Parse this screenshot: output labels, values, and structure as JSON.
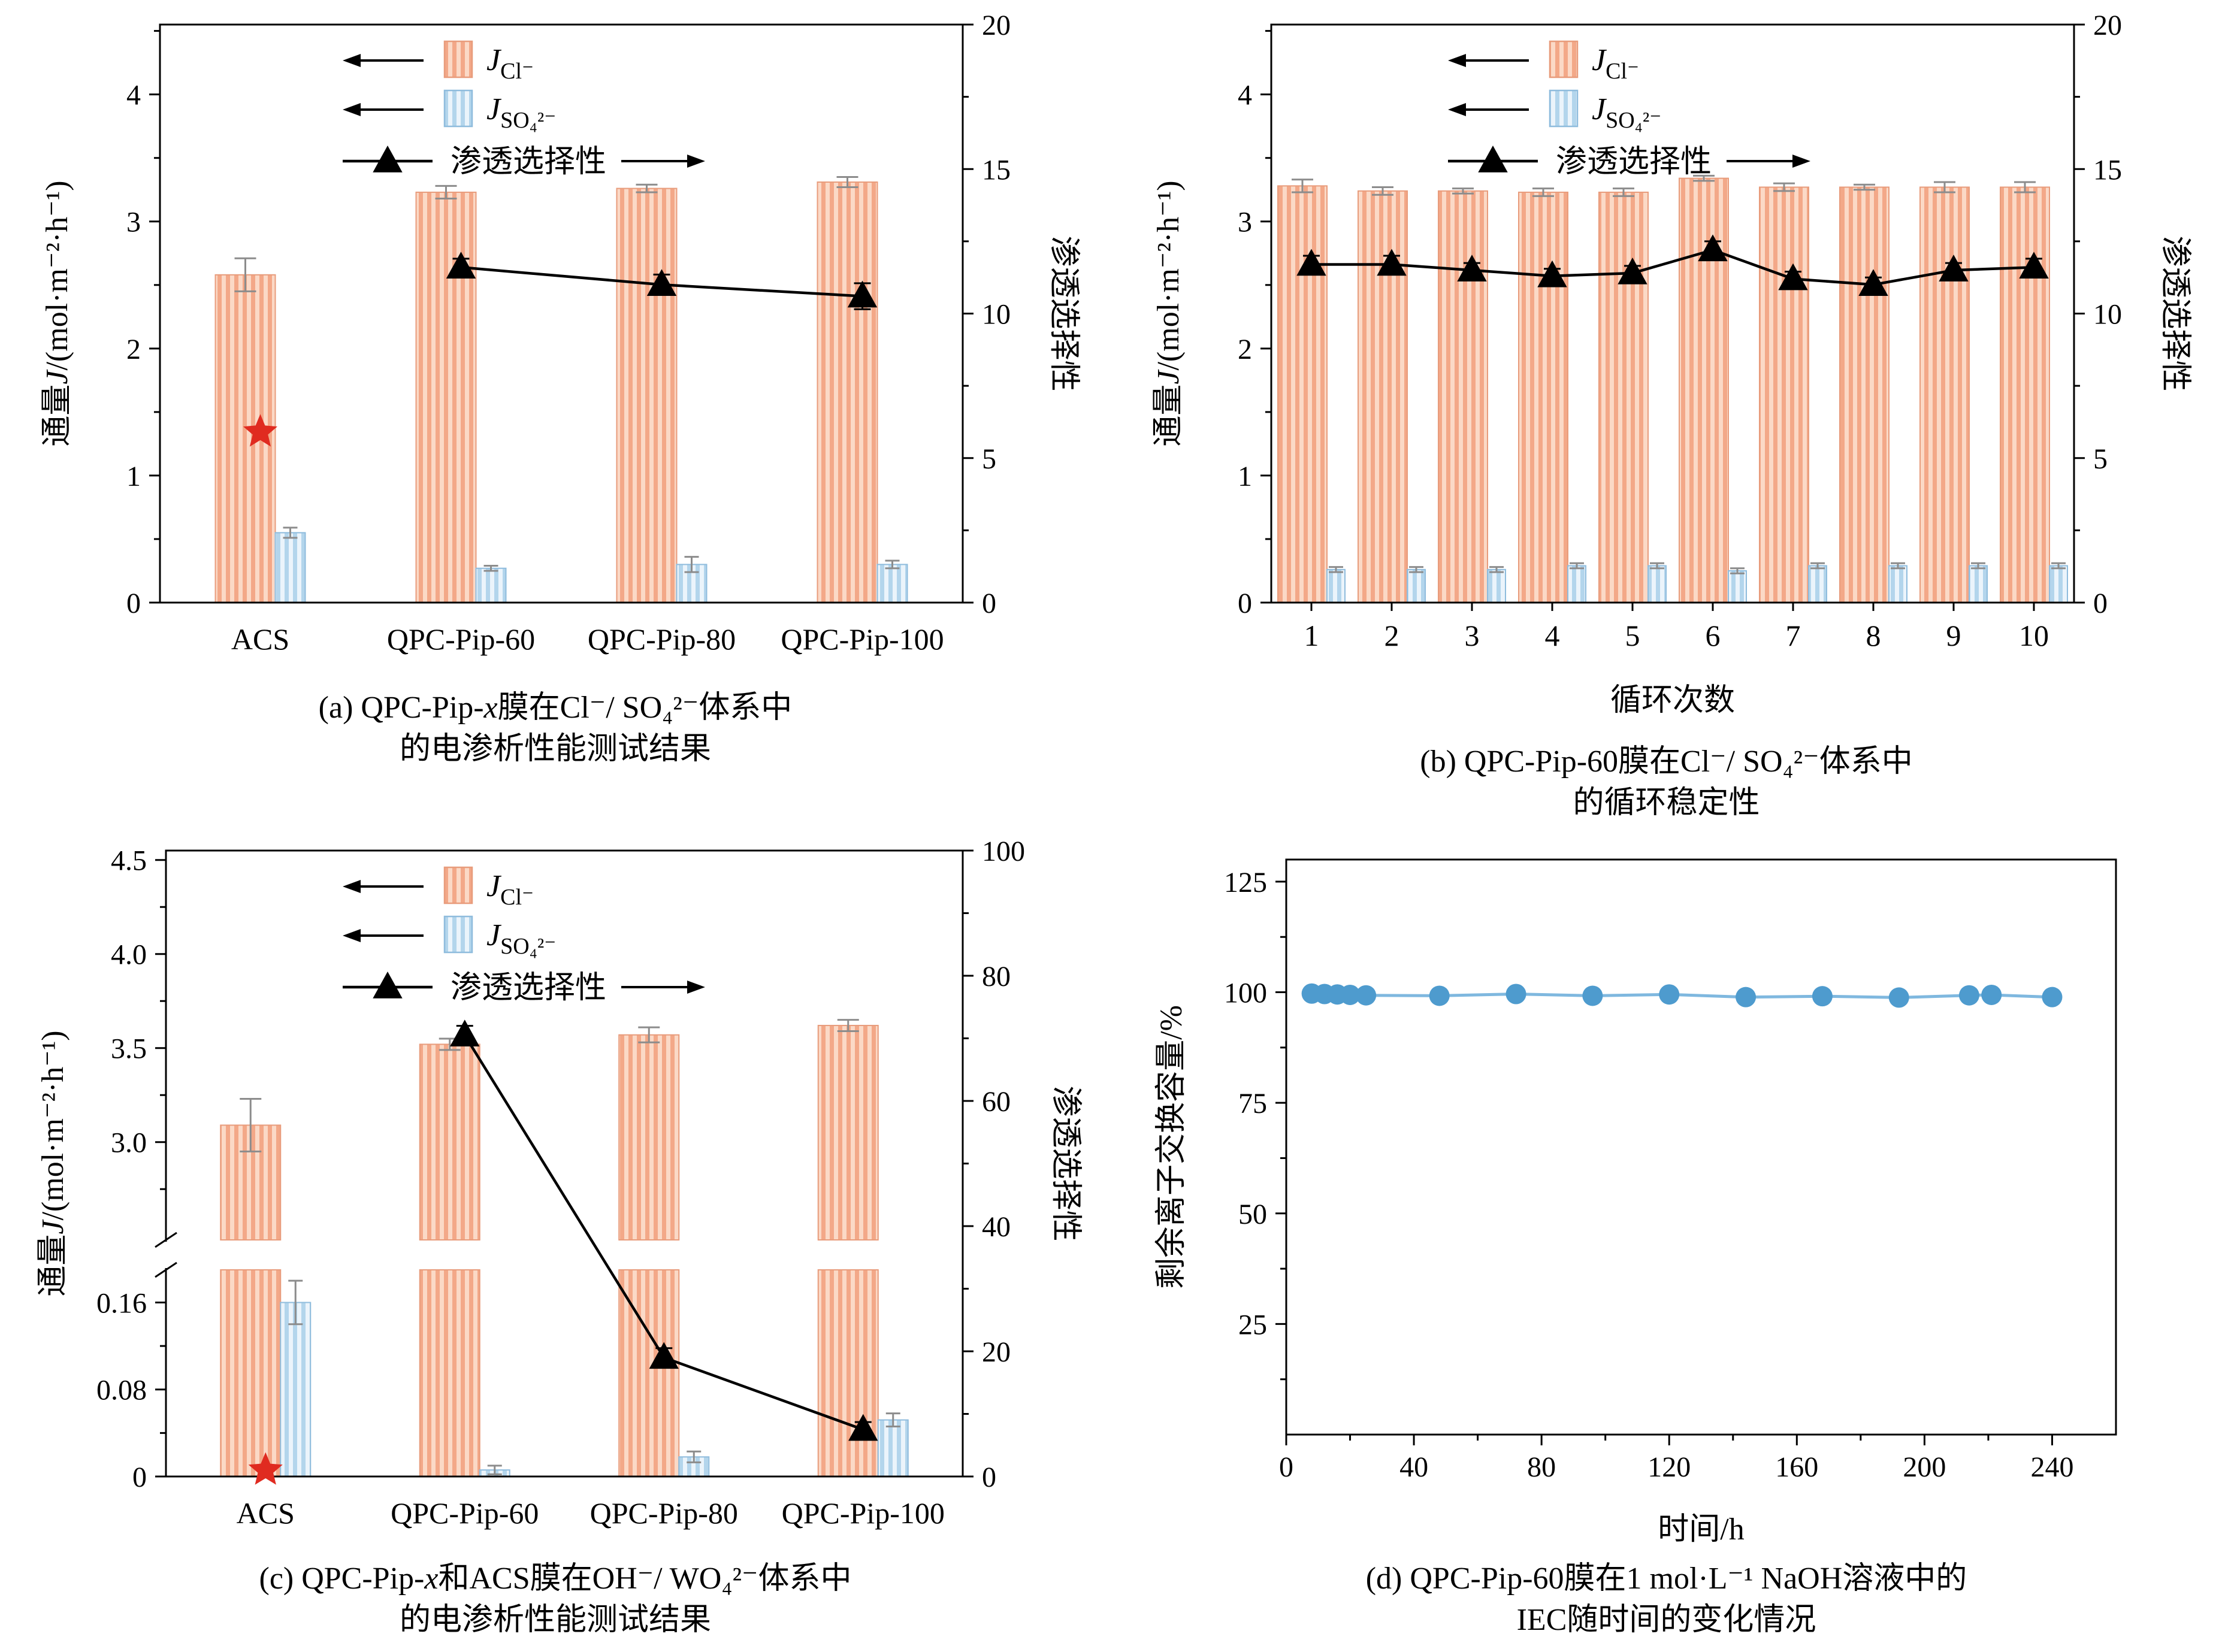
{
  "colors": {
    "bar_orange_bg": "#FBD9C6",
    "bar_orange_fg": "#F3A888",
    "bar_orange_border": "#E89C7C",
    "bar_blue_bg": "#EBF4FB",
    "bar_blue_fg": "#B3D5EC",
    "bar_blue_border": "#8FBCDD",
    "bar_err": "#8C8C8C",
    "line_black": "#000000",
    "star_red": "#E02B20",
    "dot_blue": "#4E9BCE",
    "line_blue": "#7FB8DF"
  },
  "legend": {
    "flux_sym": "J",
    "cl_sub": "Cl⁻",
    "so4_sub": "SO₄²⁻",
    "selectivity": "渗透选择性"
  },
  "captions": {
    "a": {
      "l1_pre": "(a) QPC-Pip-",
      "l1_it": "x",
      "l1_post": "膜在Cl⁻/ SO₄²⁻体系中",
      "l2": "的电渗析性能测试结果"
    },
    "b": {
      "l1": "(b) QPC-Pip-60膜在Cl⁻/ SO₄²⁻体系中",
      "l2": "的循环稳定性"
    },
    "c": {
      "l1_pre": "(c) QPC-Pip-",
      "l1_it": "x",
      "l1_post": "和ACS膜在OH⁻/ WO₄²⁻体系中",
      "l2": "的电渗析性能测试结果"
    },
    "d": {
      "l1": "(d) QPC-Pip-60膜在1 mol·L⁻¹ NaOH溶液中的",
      "l2": "IEC随时间的变化情况"
    }
  },
  "chart_data": [
    {
      "id": "a",
      "type": "bar",
      "categories": [
        "ACS",
        "QPC-Pip-60",
        "QPC-Pip-80",
        "QPC-Pip-100"
      ],
      "series": [
        {
          "name": "J_Cl-",
          "values": [
            2.58,
            3.23,
            3.26,
            3.31
          ],
          "errors": [
            0.13,
            0.05,
            0.03,
            0.04
          ]
        },
        {
          "name": "J_SO4^2-",
          "values": [
            0.55,
            0.27,
            0.3,
            0.3
          ],
          "errors": [
            0.04,
            0.02,
            0.06,
            0.03
          ]
        }
      ],
      "selectivity": {
        "name": "渗透选择性",
        "axis": "right",
        "values": [
          null,
          11.6,
          11.0,
          10.6
        ],
        "errors": [
          0,
          0.3,
          0.35,
          0.45
        ],
        "star": {
          "index": 0,
          "value": 5.9
        }
      },
      "left_axis": {
        "label_pre": "通量",
        "label_sym": "J",
        "label_post": "/(mol·m⁻²·h⁻¹)",
        "ticks": [
          0,
          1,
          2,
          3,
          4
        ],
        "tick_labels": [
          "0",
          "1",
          "2",
          "3",
          "4"
        ],
        "max": 4.55
      },
      "right_axis": {
        "label": "渗透选择性",
        "ticks": [
          0,
          5,
          10,
          15,
          20
        ],
        "tick_labels": [
          "0",
          "5",
          "10",
          "15",
          "20"
        ],
        "max": 20
      }
    },
    {
      "id": "b",
      "type": "bar",
      "categories": [
        "1",
        "2",
        "3",
        "4",
        "5",
        "6",
        "7",
        "8",
        "9",
        "10"
      ],
      "xlabel": "循环次数",
      "series": [
        {
          "name": "J_Cl-",
          "values": [
            3.28,
            3.24,
            3.24,
            3.23,
            3.23,
            3.34,
            3.27,
            3.27,
            3.27,
            3.27
          ],
          "errors": [
            0.05,
            0.03,
            0.02,
            0.03,
            0.03,
            0.02,
            0.03,
            0.02,
            0.04,
            0.04
          ]
        },
        {
          "name": "J_SO4^2-",
          "values": [
            0.26,
            0.26,
            0.26,
            0.29,
            0.29,
            0.25,
            0.29,
            0.29,
            0.29,
            0.29
          ],
          "errors": [
            0.02,
            0.02,
            0.02,
            0.02,
            0.02,
            0.02,
            0.02,
            0.02,
            0.02,
            0.02
          ]
        }
      ],
      "selectivity": {
        "name": "渗透选择性",
        "axis": "right",
        "values": [
          11.7,
          11.7,
          11.5,
          11.3,
          11.4,
          12.2,
          11.2,
          11.0,
          11.5,
          11.6
        ],
        "errors": [
          0.3,
          0.3,
          0.25,
          0.25,
          0.25,
          0.3,
          0.25,
          0.25,
          0.25,
          0.3
        ]
      },
      "left_axis": {
        "label_pre": "通量",
        "label_sym": "J",
        "label_post": "/(mol·m⁻²·h⁻¹)",
        "ticks": [
          0,
          1,
          2,
          3,
          4
        ],
        "tick_labels": [
          "0",
          "1",
          "2",
          "3",
          "4"
        ],
        "max": 4.55
      },
      "right_axis": {
        "label": "渗透选择性",
        "ticks": [
          0,
          5,
          10,
          15,
          20
        ],
        "tick_labels": [
          "0",
          "5",
          "10",
          "15",
          "20"
        ],
        "max": 20
      }
    },
    {
      "id": "c",
      "type": "bar",
      "categories": [
        "ACS",
        "QPC-Pip-60",
        "QPC-Pip-80",
        "QPC-Pip-100"
      ],
      "series": [
        {
          "name": "J_Cl-",
          "values": [
            3.09,
            3.52,
            3.57,
            3.62
          ],
          "errors": [
            0.14,
            0.03,
            0.04,
            0.03
          ]
        },
        {
          "name": "J_SO4^2-",
          "values": [
            0.16,
            0.006,
            0.018,
            0.052
          ],
          "errors": [
            0.02,
            0.004,
            0.005,
            0.006
          ]
        }
      ],
      "selectivity": {
        "name": "渗透选择性",
        "axis": "right",
        "values": [
          null,
          70.5,
          19.0,
          7.5
        ],
        "errors": [
          0,
          1.5,
          1.5,
          1.2
        ],
        "star": {
          "index": 0,
          "value": 1.0
        }
      },
      "left_axis": {
        "label_pre": "通量",
        "label_sym": "J",
        "label_post": "/(mol·m⁻²·h⁻¹)",
        "broken": true,
        "lower": {
          "ticks": [
            0,
            0.08,
            0.16
          ],
          "tick_labels": [
            "0",
            "0.08",
            "0.16"
          ],
          "max": 0.19
        },
        "upper": {
          "ticks": [
            3.0,
            3.5,
            4.0,
            4.5
          ],
          "tick_labels": [
            "3.0",
            "3.5",
            "4.0",
            "4.5"
          ],
          "min": 2.48,
          "max": 4.55
        }
      },
      "right_axis": {
        "label": "渗透选择性",
        "ticks": [
          0,
          20,
          40,
          60,
          80,
          100
        ],
        "tick_labels": [
          "0",
          "20",
          "40",
          "60",
          "80",
          "100"
        ],
        "max": 100
      }
    },
    {
      "id": "d",
      "type": "line",
      "x": [
        8,
        12,
        16,
        20,
        25,
        48,
        72,
        96,
        120,
        144,
        168,
        192,
        214,
        221,
        240
      ],
      "y": [
        99.7,
        99.6,
        99.5,
        99.4,
        99.3,
        99.2,
        99.6,
        99.2,
        99.5,
        98.9,
        99.1,
        98.8,
        99.3,
        99.4,
        98.9
      ],
      "xlabel": "时间/h",
      "ylabel": "剩余离子交换容量/%",
      "x_axis": {
        "ticks": [
          0,
          40,
          80,
          120,
          160,
          200,
          240
        ],
        "tick_labels": [
          "0",
          "40",
          "80",
          "120",
          "160",
          "200",
          "240"
        ],
        "max": 260
      },
      "y_axis": {
        "ticks": [
          25,
          50,
          75,
          100,
          125
        ],
        "tick_labels": [
          "25",
          "50",
          "75",
          "100",
          "125"
        ],
        "max": 130
      }
    }
  ]
}
